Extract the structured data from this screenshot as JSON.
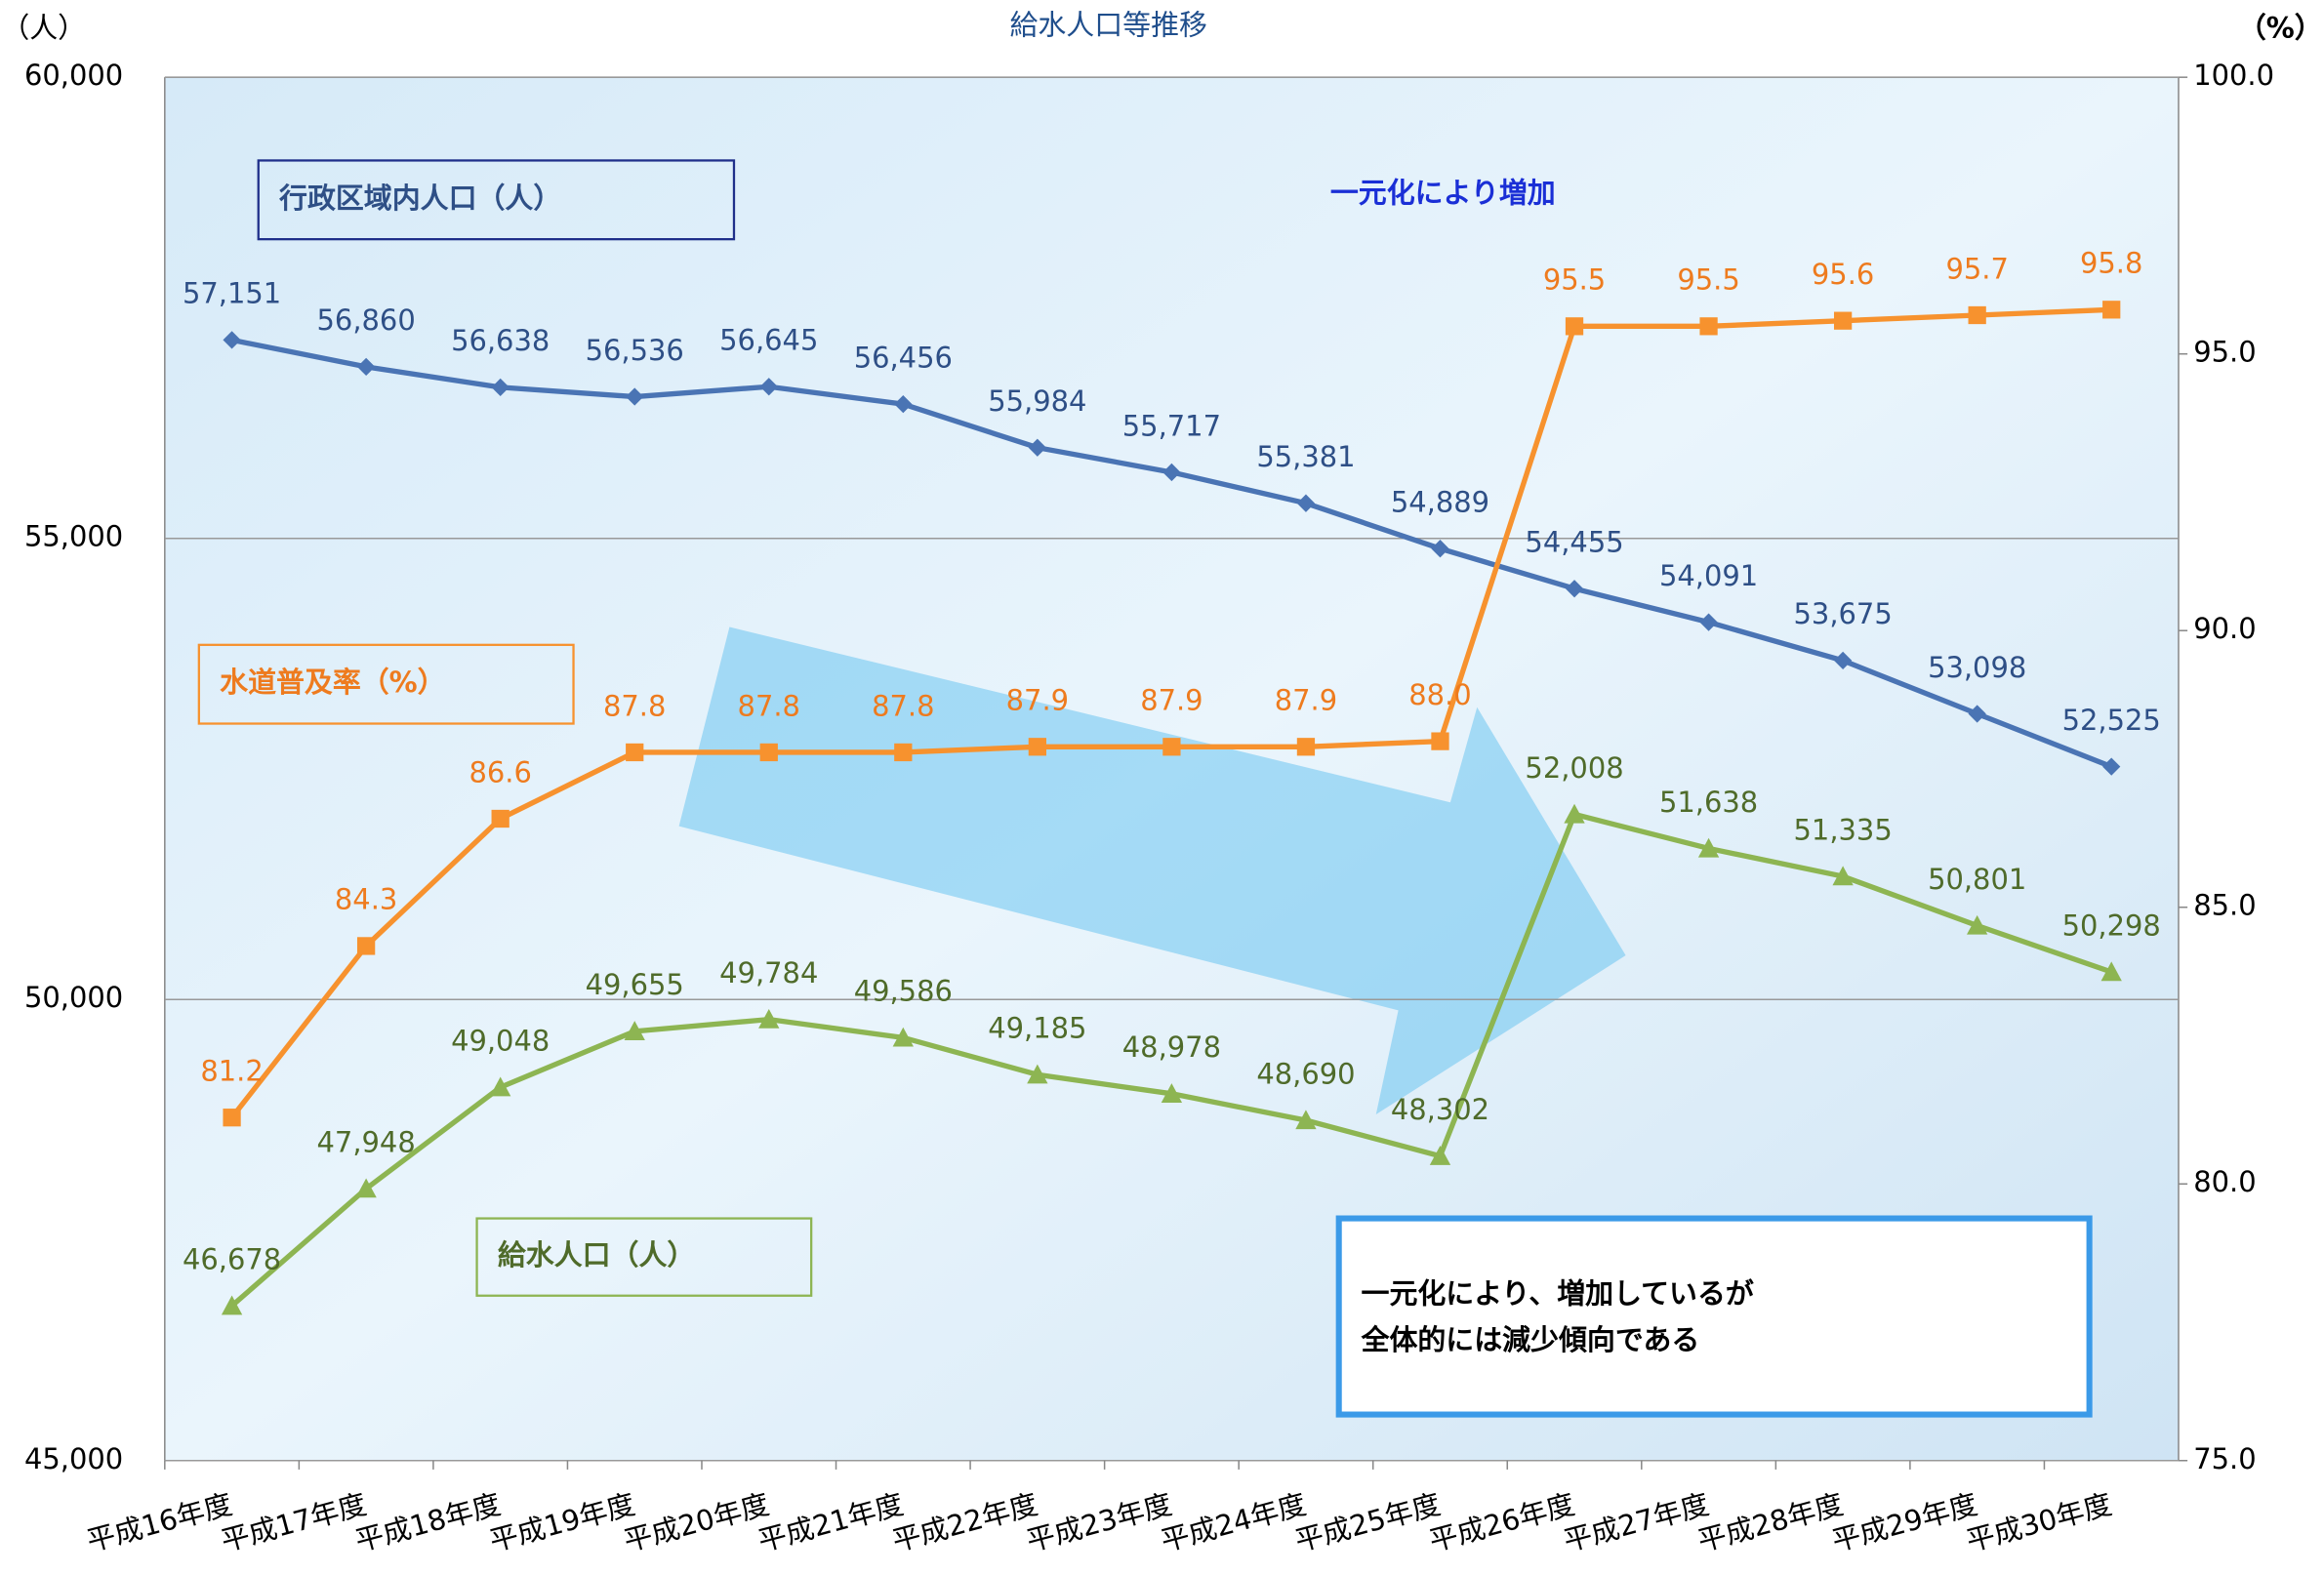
{
  "chart_data": {
    "type": "line",
    "title": "給水人口等推移",
    "y_label": "（人）",
    "y2_label": "（%）",
    "annotation": "一元化により増加",
    "note_lines": [
      "一元化により、増加しているが",
      "全体的には減少傾向である"
    ],
    "categories": [
      "平成16年度",
      "平成17年度",
      "平成18年度",
      "平成19年度",
      "平成20年度",
      "平成21年度",
      "平成22年度",
      "平成23年度",
      "平成24年度",
      "平成25年度",
      "平成26年度",
      "平成27年度",
      "平成28年度",
      "平成29年度",
      "平成30年度"
    ],
    "series": [
      {
        "name": "行政区域内人口（人）",
        "color": "#4a74b4",
        "marker": "diamond",
        "values": [
          57151,
          56860,
          56638,
          56536,
          56645,
          56456,
          55984,
          55717,
          55381,
          54889,
          54455,
          54091,
          53675,
          53098,
          52525
        ],
        "value_labels": [
          "57,151",
          "56,860",
          "56,638",
          "56,536",
          "56,645",
          "56,456",
          "55,984",
          "55,717",
          "55,381",
          "54,889",
          "54,455",
          "54,091",
          "53,675",
          "53,098",
          "52,525"
        ]
      },
      {
        "name": "水道普及率（%）",
        "color": "#f7922e",
        "marker": "square",
        "axis": "y2",
        "values": [
          81.2,
          84.3,
          86.6,
          87.8,
          87.8,
          87.8,
          87.9,
          87.9,
          87.9,
          88.0,
          95.5,
          95.5,
          95.6,
          95.7,
          95.8
        ],
        "value_labels": [
          "81.2",
          "84.3",
          "86.6",
          "87.8",
          "87.8",
          "87.8",
          "87.9",
          "87.9",
          "87.9",
          "88.0",
          "95.5",
          "95.5",
          "95.6",
          "95.7",
          "95.8"
        ]
      },
      {
        "name": "給水人口（人）",
        "color": "#8db552",
        "marker": "triangle",
        "values": [
          46678,
          47948,
          49048,
          49655,
          49784,
          49586,
          49185,
          48978,
          48690,
          48302,
          52008,
          51638,
          51335,
          50801,
          50298
        ],
        "value_labels": [
          "46,678",
          "47,948",
          "49,048",
          "49,655",
          "49,784",
          "49,586",
          "49,185",
          "48,978",
          "48,690",
          "48,302",
          "52,008",
          "51,638",
          "51,335",
          "50,801",
          "50,298"
        ]
      }
    ],
    "ylim": [
      45000,
      60000
    ],
    "yticks": [
      {
        "value": 45000,
        "label": "45,000"
      },
      {
        "value": 50000,
        "label": "50,000"
      },
      {
        "value": 55000,
        "label": "55,000"
      },
      {
        "value": 60000,
        "label": "60,000"
      }
    ],
    "y2lim": [
      75,
      100
    ],
    "y2ticks": [
      {
        "value": 75,
        "label": "75.0"
      },
      {
        "value": 80,
        "label": "80.0"
      },
      {
        "value": 85,
        "label": "85.0"
      },
      {
        "value": 90,
        "label": "90.0"
      },
      {
        "value": 95,
        "label": "95.0"
      },
      {
        "value": 100,
        "label": "100.0"
      }
    ],
    "grid": true
  }
}
